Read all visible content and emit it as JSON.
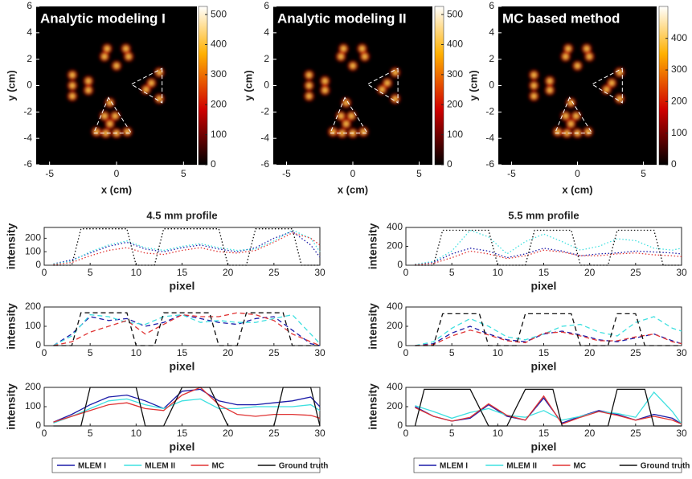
{
  "chart_data": [
    {
      "type": "heatmap",
      "title": "Analytic modeling I",
      "xlabel": "x (cm)",
      "ylabel": "y (cm)",
      "xlim": [
        -6,
        6
      ],
      "ylim": [
        -6,
        6
      ],
      "xticks": [
        -5,
        0,
        5
      ],
      "yticks": [
        -6,
        -4,
        -2,
        0,
        2,
        4,
        6
      ],
      "clim": [
        0,
        527
      ],
      "cticks": [
        0,
        100,
        200,
        300,
        400,
        500
      ]
    },
    {
      "type": "heatmap",
      "title": "Analytic modeling II",
      "xlabel": "x (cm)",
      "ylabel": "y (cm)",
      "xlim": [
        -6,
        6
      ],
      "ylim": [
        -6,
        6
      ],
      "xticks": [
        -5,
        0,
        5
      ],
      "yticks": [
        -6,
        -4,
        -2,
        0,
        2,
        4,
        6
      ],
      "clim": [
        0,
        527
      ],
      "cticks": [
        0,
        100,
        200,
        300,
        400,
        500
      ]
    },
    {
      "type": "heatmap",
      "title": "MC based method",
      "xlabel": "x (cm)",
      "ylabel": "y (cm)",
      "xlim": [
        -6,
        6
      ],
      "ylim": [
        -6,
        6
      ],
      "xticks": [
        -5,
        0,
        5
      ],
      "yticks": [
        -6,
        -4,
        -2,
        0,
        2,
        4,
        6
      ],
      "clim": [
        0,
        501
      ],
      "cticks": [
        0,
        100,
        200,
        300,
        400
      ]
    },
    {
      "type": "line",
      "title": "4.5 mm profile",
      "xlabel": "pixel",
      "ylabel": "intensity",
      "line_style": "dotted",
      "xlim": [
        0,
        30
      ],
      "ylim": [
        0,
        280
      ],
      "xticks": [
        0,
        5,
        10,
        15,
        20,
        25,
        30
      ],
      "yticks": [
        0,
        100,
        200
      ],
      "x": [
        1,
        3,
        5,
        7,
        9,
        11,
        13,
        15,
        17,
        19,
        21,
        23,
        25,
        27,
        29,
        30
      ],
      "series": [
        {
          "color": "#1c1ca8",
          "values": [
            10,
            40,
            90,
            140,
            170,
            120,
            100,
            130,
            150,
            120,
            100,
            130,
            200,
            250,
            150,
            60
          ]
        },
        {
          "color": "#3fe0e0",
          "values": [
            10,
            30,
            100,
            150,
            180,
            130,
            110,
            140,
            160,
            130,
            110,
            120,
            180,
            260,
            200,
            100
          ]
        },
        {
          "color": "#e03434",
          "values": [
            5,
            20,
            70,
            110,
            130,
            90,
            80,
            110,
            130,
            100,
            90,
            110,
            170,
            240,
            200,
            150
          ]
        },
        {
          "color": "#111111",
          "x": [
            1,
            3,
            4,
            9,
            10,
            12,
            13,
            19,
            20,
            22,
            23,
            27,
            28,
            30
          ],
          "values": [
            0,
            0,
            270,
            270,
            0,
            0,
            270,
            270,
            0,
            0,
            270,
            270,
            0,
            0
          ]
        }
      ]
    },
    {
      "type": "line",
      "xlabel": "pixel",
      "ylabel": "intensity",
      "line_style": "dashed",
      "xlim": [
        0,
        30
      ],
      "ylim": [
        0,
        200
      ],
      "xticks": [
        0,
        5,
        10,
        15,
        20,
        25,
        30
      ],
      "yticks": [
        0,
        100,
        200
      ],
      "x": [
        1,
        3,
        5,
        7,
        9,
        11,
        13,
        15,
        17,
        19,
        21,
        23,
        25,
        27,
        29,
        30
      ],
      "series": [
        {
          "color": "#1c1ca8",
          "values": [
            0,
            60,
            150,
            130,
            140,
            100,
            120,
            160,
            140,
            120,
            110,
            140,
            150,
            80,
            10,
            0
          ]
        },
        {
          "color": "#3fe0e0",
          "values": [
            0,
            50,
            160,
            150,
            120,
            110,
            150,
            160,
            120,
            130,
            120,
            120,
            140,
            160,
            60,
            10
          ]
        },
        {
          "color": "#e03434",
          "values": [
            0,
            20,
            70,
            100,
            130,
            60,
            110,
            160,
            150,
            150,
            170,
            160,
            130,
            60,
            20,
            0
          ]
        },
        {
          "color": "#111111",
          "x": [
            1,
            3,
            4,
            9,
            10,
            12,
            13,
            18,
            19,
            21,
            22,
            26,
            27,
            30
          ],
          "values": [
            0,
            0,
            170,
            170,
            0,
            0,
            170,
            170,
            0,
            0,
            170,
            170,
            0,
            0
          ]
        }
      ]
    },
    {
      "type": "line",
      "xlabel": "pixel",
      "ylabel": "intensity",
      "line_style": "solid",
      "legend": "bottom",
      "xlim": [
        0,
        30
      ],
      "ylim": [
        0,
        200
      ],
      "xticks": [
        0,
        5,
        10,
        15,
        20,
        25,
        30
      ],
      "yticks": [
        0,
        100,
        200
      ],
      "x": [
        1,
        3,
        5,
        7,
        9,
        11,
        13,
        15,
        17,
        19,
        21,
        23,
        25,
        27,
        29,
        30
      ],
      "series": [
        {
          "name": "MLEM I",
          "color": "#1c1ca8",
          "values": [
            20,
            60,
            110,
            150,
            160,
            130,
            90,
            180,
            190,
            130,
            110,
            110,
            120,
            130,
            150,
            100
          ]
        },
        {
          "name": "MLEM II",
          "color": "#3fe0e0",
          "values": [
            15,
            50,
            90,
            130,
            140,
            110,
            90,
            130,
            140,
            90,
            90,
            100,
            100,
            100,
            110,
            80
          ]
        },
        {
          "name": "MC",
          "color": "#e03434",
          "values": [
            20,
            50,
            80,
            110,
            120,
            90,
            80,
            160,
            200,
            110,
            60,
            50,
            60,
            60,
            55,
            40
          ]
        },
        {
          "name": "Ground truth",
          "color": "#111111",
          "x": [
            1,
            4,
            5,
            10,
            11,
            13,
            15,
            18,
            20,
            25,
            26,
            29,
            30
          ],
          "values": [
            0,
            0,
            200,
            200,
            0,
            0,
            200,
            200,
            0,
            0,
            200,
            200,
            0
          ]
        }
      ]
    },
    {
      "type": "line",
      "title": "5.5 mm profile",
      "xlabel": "pixel",
      "ylabel": "intensity",
      "line_style": "dotted",
      "xlim": [
        0,
        30
      ],
      "ylim": [
        0,
        400
      ],
      "xticks": [
        0,
        5,
        10,
        15,
        20,
        25,
        30
      ],
      "yticks": [
        0,
        200,
        400
      ],
      "x": [
        1,
        3,
        5,
        7,
        9,
        11,
        13,
        15,
        17,
        19,
        21,
        23,
        25,
        27,
        29,
        30
      ],
      "series": [
        {
          "color": "#1c1ca8",
          "values": [
            10,
            30,
            120,
            180,
            150,
            80,
            120,
            180,
            150,
            100,
            120,
            130,
            150,
            140,
            130,
            120
          ]
        },
        {
          "color": "#3fe0e0",
          "values": [
            10,
            40,
            150,
            370,
            300,
            120,
            250,
            330,
            250,
            160,
            200,
            280,
            260,
            180,
            160,
            180
          ]
        },
        {
          "color": "#e03434",
          "values": [
            5,
            20,
            80,
            150,
            120,
            70,
            100,
            160,
            140,
            100,
            100,
            120,
            130,
            110,
            100,
            90
          ]
        },
        {
          "color": "#111111",
          "x": [
            1,
            3,
            4,
            9,
            10,
            13,
            14,
            18,
            19,
            22,
            23,
            27,
            28,
            30
          ],
          "values": [
            0,
            0,
            370,
            370,
            0,
            0,
            370,
            370,
            0,
            0,
            370,
            370,
            0,
            0
          ]
        }
      ]
    },
    {
      "type": "line",
      "xlabel": "pixel",
      "ylabel": "intensity",
      "line_style": "dashed",
      "xlim": [
        0,
        30
      ],
      "ylim": [
        0,
        400
      ],
      "xticks": [
        0,
        5,
        10,
        15,
        20,
        25,
        30
      ],
      "yticks": [
        0,
        200,
        400
      ],
      "x": [
        1,
        3,
        5,
        7,
        9,
        11,
        13,
        15,
        17,
        19,
        21,
        23,
        25,
        27,
        29,
        30
      ],
      "series": [
        {
          "color": "#1c1ca8",
          "values": [
            0,
            20,
            130,
            200,
            120,
            60,
            40,
            120,
            150,
            110,
            60,
            40,
            80,
            120,
            50,
            20
          ]
        },
        {
          "color": "#3fe0e0",
          "values": [
            0,
            40,
            180,
            280,
            200,
            90,
            60,
            120,
            200,
            220,
            140,
            100,
            240,
            300,
            180,
            150
          ]
        },
        {
          "color": "#e03434",
          "values": [
            0,
            10,
            100,
            160,
            110,
            50,
            30,
            130,
            140,
            100,
            50,
            50,
            90,
            120,
            40,
            20
          ]
        },
        {
          "color": "#111111",
          "x": [
            1,
            3,
            4,
            8,
            9,
            12,
            13,
            18,
            19,
            22,
            23,
            25,
            26,
            30
          ],
          "values": [
            0,
            0,
            330,
            330,
            0,
            0,
            330,
            330,
            0,
            0,
            330,
            330,
            0,
            0
          ]
        }
      ]
    },
    {
      "type": "line",
      "xlabel": "pixel",
      "ylabel": "intensity",
      "line_style": "solid",
      "legend": "bottom",
      "xlim": [
        0,
        30
      ],
      "ylim": [
        0,
        400
      ],
      "xticks": [
        0,
        5,
        10,
        15,
        20,
        25,
        30
      ],
      "yticks": [
        0,
        200,
        400
      ],
      "x": [
        1,
        3,
        5,
        7,
        9,
        11,
        13,
        15,
        17,
        19,
        21,
        23,
        25,
        27,
        29,
        30
      ],
      "series": [
        {
          "name": "MLEM I",
          "color": "#1c1ca8",
          "values": [
            200,
            100,
            50,
            80,
            220,
            100,
            60,
            290,
            30,
            100,
            160,
            120,
            60,
            120,
            80,
            20
          ]
        },
        {
          "name": "MLEM II",
          "color": "#3fe0e0",
          "values": [
            210,
            150,
            80,
            140,
            180,
            110,
            90,
            160,
            60,
            100,
            150,
            130,
            90,
            350,
            150,
            20
          ]
        },
        {
          "name": "MC",
          "color": "#e03434",
          "values": [
            190,
            100,
            50,
            90,
            230,
            110,
            60,
            310,
            20,
            90,
            150,
            110,
            60,
            100,
            60,
            20
          ]
        },
        {
          "name": "Ground truth",
          "color": "#111111",
          "x": [
            1,
            2,
            7,
            9,
            11,
            13,
            16,
            17,
            19,
            22,
            23,
            26,
            27,
            30
          ],
          "values": [
            0,
            380,
            380,
            0,
            0,
            380,
            380,
            0,
            0,
            0,
            380,
            380,
            0,
            0
          ]
        }
      ]
    }
  ]
}
